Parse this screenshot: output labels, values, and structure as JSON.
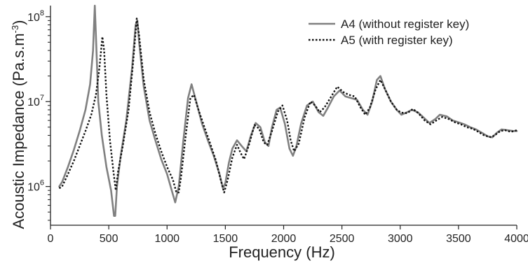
{
  "chart_data": {
    "type": "line",
    "xlabel": "Frequency (Hz)",
    "ylabel": "Acoustic Impedance (Pa.s.m",
    "ylabel_sup": "-3",
    "ylabel_close": ")",
    "xlim": [
      0,
      4000
    ],
    "ylim": [
      350000,
      135000000
    ],
    "yscale": "log",
    "grid": false,
    "legend_position": "top-right",
    "x_ticks": [
      {
        "value": 0,
        "label": "0"
      },
      {
        "value": 500,
        "label": "500"
      },
      {
        "value": 1000,
        "label": "1000"
      },
      {
        "value": 1500,
        "label": "1500"
      },
      {
        "value": 2000,
        "label": "2000"
      },
      {
        "value": 2500,
        "label": "2500"
      },
      {
        "value": 3000,
        "label": "3000"
      },
      {
        "value": 3500,
        "label": "3500"
      },
      {
        "value": 4000,
        "label": "4000"
      }
    ],
    "y_ticks": [
      {
        "value": 1000000,
        "base": "10",
        "exp": "6"
      },
      {
        "value": 10000000,
        "base": "10",
        "exp": "7"
      },
      {
        "value": 100000000,
        "base": "10",
        "exp": "8"
      }
    ],
    "series": [
      {
        "name": "A4 (without register key)",
        "color": "#808080",
        "style": "solid",
        "points": [
          [
            75,
            1000000
          ],
          [
            100,
            1130000
          ],
          [
            150,
            1700000
          ],
          [
            200,
            2700000
          ],
          [
            250,
            4500000
          ],
          [
            300,
            8000000
          ],
          [
            340,
            16000000
          ],
          [
            365,
            40000000
          ],
          [
            380,
            135000000
          ],
          [
            390,
            60000000
          ],
          [
            410,
            10000000
          ],
          [
            440,
            4000000
          ],
          [
            480,
            1700000
          ],
          [
            520,
            900000
          ],
          [
            545,
            450000
          ],
          [
            555,
            450000
          ],
          [
            570,
            1000000
          ],
          [
            600,
            2200000
          ],
          [
            650,
            6000000
          ],
          [
            700,
            25000000
          ],
          [
            730,
            80000000
          ],
          [
            745,
            90000000
          ],
          [
            760,
            50000000
          ],
          [
            800,
            15000000
          ],
          [
            850,
            6000000
          ],
          [
            900,
            3500000
          ],
          [
            950,
            2100000
          ],
          [
            1000,
            1400000
          ],
          [
            1040,
            900000
          ],
          [
            1070,
            650000
          ],
          [
            1100,
            1000000
          ],
          [
            1140,
            3500000
          ],
          [
            1180,
            11000000
          ],
          [
            1210,
            16000000
          ],
          [
            1250,
            10000000
          ],
          [
            1300,
            5500000
          ],
          [
            1350,
            3500000
          ],
          [
            1400,
            2300000
          ],
          [
            1450,
            1400000
          ],
          [
            1480,
            950000
          ],
          [
            1500,
            1100000
          ],
          [
            1530,
            1900000
          ],
          [
            1560,
            2800000
          ],
          [
            1600,
            3500000
          ],
          [
            1640,
            3000000
          ],
          [
            1680,
            2600000
          ],
          [
            1720,
            4000000
          ],
          [
            1760,
            5600000
          ],
          [
            1800,
            5000000
          ],
          [
            1840,
            3300000
          ],
          [
            1870,
            3000000
          ],
          [
            1900,
            5000000
          ],
          [
            1940,
            8000000
          ],
          [
            1970,
            8500000
          ],
          [
            2010,
            5500000
          ],
          [
            2050,
            2800000
          ],
          [
            2080,
            2300000
          ],
          [
            2110,
            3000000
          ],
          [
            2150,
            5500000
          ],
          [
            2200,
            9000000
          ],
          [
            2250,
            10000000
          ],
          [
            2300,
            7500000
          ],
          [
            2340,
            6800000
          ],
          [
            2380,
            8500000
          ],
          [
            2430,
            11500000
          ],
          [
            2480,
            13500000
          ],
          [
            2530,
            11500000
          ],
          [
            2580,
            11000000
          ],
          [
            2630,
            10500000
          ],
          [
            2680,
            8000000
          ],
          [
            2720,
            7000000
          ],
          [
            2760,
            10000000
          ],
          [
            2800,
            18000000
          ],
          [
            2830,
            20000000
          ],
          [
            2870,
            14000000
          ],
          [
            2920,
            10000000
          ],
          [
            2970,
            8000000
          ],
          [
            3010,
            7000000
          ],
          [
            3060,
            7500000
          ],
          [
            3100,
            8000000
          ],
          [
            3150,
            7500000
          ],
          [
            3200,
            6500000
          ],
          [
            3250,
            5600000
          ],
          [
            3300,
            6200000
          ],
          [
            3340,
            7000000
          ],
          [
            3400,
            6700000
          ],
          [
            3450,
            6000000
          ],
          [
            3500,
            5700000
          ],
          [
            3550,
            5400000
          ],
          [
            3600,
            5000000
          ],
          [
            3650,
            4700000
          ],
          [
            3700,
            4300000
          ],
          [
            3750,
            3900000
          ],
          [
            3790,
            3800000
          ],
          [
            3830,
            4300000
          ],
          [
            3870,
            4700000
          ],
          [
            3920,
            4600000
          ],
          [
            3970,
            4500000
          ],
          [
            4000,
            4500000
          ]
        ]
      },
      {
        "name": "A5 (with register key)",
        "color": "#111111",
        "style": "dotted",
        "points": [
          [
            75,
            950000
          ],
          [
            100,
            1000000
          ],
          [
            150,
            1400000
          ],
          [
            200,
            2000000
          ],
          [
            250,
            3000000
          ],
          [
            300,
            4500000
          ],
          [
            350,
            7000000
          ],
          [
            390,
            12000000
          ],
          [
            420,
            25000000
          ],
          [
            445,
            58000000
          ],
          [
            460,
            40000000
          ],
          [
            480,
            12000000
          ],
          [
            510,
            3500000
          ],
          [
            540,
            1500000
          ],
          [
            560,
            900000
          ],
          [
            580,
            1500000
          ],
          [
            620,
            3000000
          ],
          [
            670,
            8000000
          ],
          [
            710,
            30000000
          ],
          [
            740,
            95000000
          ],
          [
            760,
            60000000
          ],
          [
            800,
            18000000
          ],
          [
            850,
            7500000
          ],
          [
            900,
            4200000
          ],
          [
            950,
            2600000
          ],
          [
            1000,
            1700000
          ],
          [
            1050,
            1200000
          ],
          [
            1080,
            850000
          ],
          [
            1100,
            850000
          ],
          [
            1120,
            1300000
          ],
          [
            1160,
            4000000
          ],
          [
            1200,
            11000000
          ],
          [
            1230,
            12000000
          ],
          [
            1270,
            8000000
          ],
          [
            1320,
            5000000
          ],
          [
            1370,
            3200000
          ],
          [
            1420,
            2000000
          ],
          [
            1460,
            1200000
          ],
          [
            1490,
            850000
          ],
          [
            1520,
            1200000
          ],
          [
            1560,
            2200000
          ],
          [
            1600,
            3100000
          ],
          [
            1630,
            2500000
          ],
          [
            1660,
            2100000
          ],
          [
            1700,
            3000000
          ],
          [
            1750,
            5300000
          ],
          [
            1790,
            4800000
          ],
          [
            1830,
            3300000
          ],
          [
            1860,
            3100000
          ],
          [
            1900,
            4500000
          ],
          [
            1950,
            7600000
          ],
          [
            1990,
            9000000
          ],
          [
            2030,
            6000000
          ],
          [
            2060,
            3500000
          ],
          [
            2090,
            2600000
          ],
          [
            2130,
            3200000
          ],
          [
            2180,
            6500000
          ],
          [
            2230,
            10000000
          ],
          [
            2270,
            9000000
          ],
          [
            2310,
            7500000
          ],
          [
            2350,
            8500000
          ],
          [
            2400,
            11000000
          ],
          [
            2460,
            15000000
          ],
          [
            2510,
            13000000
          ],
          [
            2560,
            12000000
          ],
          [
            2610,
            11500000
          ],
          [
            2660,
            8500000
          ],
          [
            2700,
            7000000
          ],
          [
            2740,
            8500000
          ],
          [
            2790,
            14000000
          ],
          [
            2830,
            18000000
          ],
          [
            2870,
            14000000
          ],
          [
            2920,
            10000000
          ],
          [
            2970,
            8000000
          ],
          [
            3010,
            7400000
          ],
          [
            3060,
            7300000
          ],
          [
            3110,
            8200000
          ],
          [
            3160,
            7200000
          ],
          [
            3210,
            6000000
          ],
          [
            3260,
            5400000
          ],
          [
            3310,
            6000000
          ],
          [
            3360,
            6600000
          ],
          [
            3420,
            6200000
          ],
          [
            3470,
            5700000
          ],
          [
            3520,
            5400000
          ],
          [
            3570,
            5000000
          ],
          [
            3620,
            4800000
          ],
          [
            3670,
            4400000
          ],
          [
            3720,
            4000000
          ],
          [
            3780,
            3800000
          ],
          [
            3820,
            4100000
          ],
          [
            3860,
            4500000
          ],
          [
            3900,
            4600000
          ],
          [
            3950,
            4400000
          ],
          [
            4000,
            4600000
          ]
        ]
      }
    ]
  }
}
